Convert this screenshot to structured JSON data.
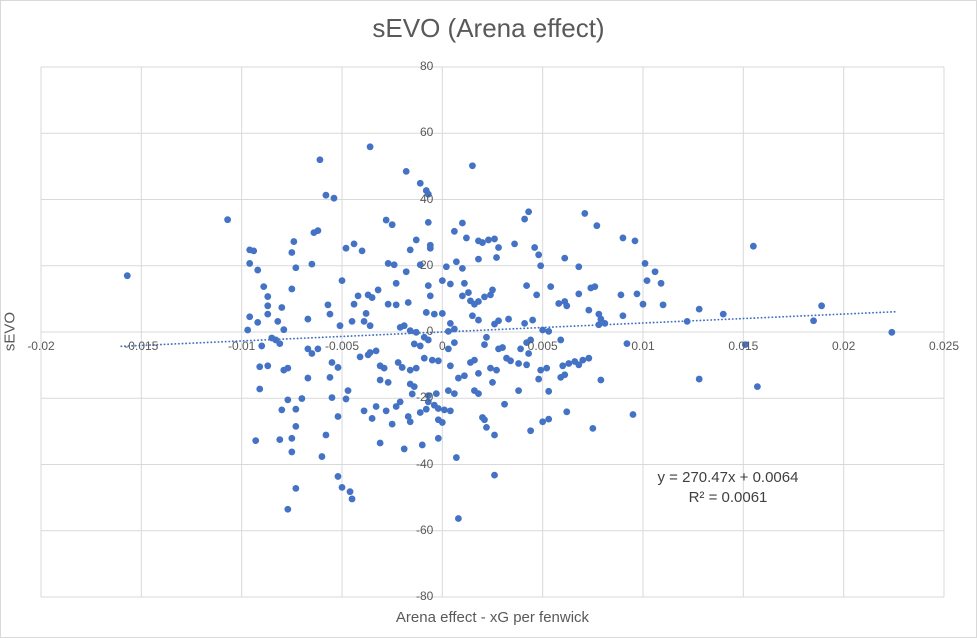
{
  "title": "sEVO (Arena effect)",
  "colors": {
    "point": "#4472C4",
    "trendline": "#4472C4",
    "gridline": "#D9D9D9",
    "title_text": "#595959",
    "tick_text": "#595959",
    "equation_text": "#404040"
  },
  "chart_data": {
    "type": "scatter",
    "title": "sEVO (Arena effect)",
    "xlabel": "Arena effect - xG per fenwick",
    "ylabel": "sEVO",
    "xlim": [
      -0.02,
      0.025
    ],
    "ylim": [
      -80,
      80
    ],
    "grid": true,
    "x_ticks": [
      -0.02,
      -0.015,
      -0.01,
      -0.005,
      0,
      0.005,
      0.01,
      0.015,
      0.02,
      0.025
    ],
    "x_tick_labels": [
      "-0.02",
      "-0.015",
      "-0.01",
      "-0.005",
      "0",
      "0.005",
      "0.01",
      "0.015",
      "0.02",
      "0.025"
    ],
    "y_ticks": [
      80,
      60,
      40,
      20,
      0,
      -20,
      -40,
      -60,
      -80
    ],
    "y_tick_labels": [
      "80",
      "60",
      "40",
      "20",
      "0",
      "-20",
      "-40",
      "-60",
      "-80"
    ],
    "point_color": "#4472C4",
    "trendline": {
      "slope": 270.47,
      "intercept": 0.0064,
      "x_start": -0.016,
      "x_end": 0.0226,
      "style": "dotted",
      "equation": "y = 270.47x + 0.0064",
      "r_squared": "R² = 0.0061"
    },
    "points": [
      [
        -0.0157,
        17.0
      ],
      [
        -0.0107,
        33.9
      ],
      [
        -0.0096,
        24.8
      ],
      [
        -0.0094,
        24.5
      ],
      [
        -0.0096,
        20.7
      ],
      [
        -0.0092,
        18.7
      ],
      [
        -0.0074,
        27.3
      ],
      [
        -0.0075,
        24.0
      ],
      [
        -0.0073,
        19.4
      ],
      [
        -0.0061,
        52.0
      ],
      [
        -0.0036,
        55.9
      ],
      [
        -0.0018,
        48.5
      ],
      [
        -0.0011,
        44.9
      ],
      [
        -0.0008,
        42.7
      ],
      [
        -0.0007,
        41.6
      ],
      [
        0.0015,
        50.2
      ],
      [
        -0.0058,
        41.3
      ],
      [
        -0.0054,
        40.4
      ],
      [
        -0.0064,
        30.0
      ],
      [
        -0.0062,
        30.6
      ],
      [
        -0.0028,
        33.8
      ],
      [
        -0.0025,
        32.4
      ],
      [
        -0.0007,
        33.1
      ],
      [
        0.0006,
        30.4
      ],
      [
        0.001,
        32.9
      ],
      [
        0.0012,
        28.4
      ],
      [
        -0.0013,
        27.8
      ],
      [
        -0.0006,
        26.2
      ],
      [
        -0.0006,
        25.3
      ],
      [
        -0.0048,
        25.3
      ],
      [
        -0.0044,
        26.6
      ],
      [
        -0.004,
        24.5
      ],
      [
        -0.0016,
        24.8
      ],
      [
        0.0018,
        27.5
      ],
      [
        0.002,
        27.0
      ],
      [
        0.0023,
        27.8
      ],
      [
        0.0026,
        28.1
      ],
      [
        0.0028,
        25.5
      ],
      [
        0.0018,
        22.0
      ],
      [
        0.0027,
        22.5
      ],
      [
        -0.0065,
        20.5
      ],
      [
        -0.0027,
        20.7
      ],
      [
        -0.0024,
        20.3
      ],
      [
        -0.0018,
        18.2
      ],
      [
        -0.0011,
        20.3
      ],
      [
        0.0002,
        19.7
      ],
      [
        0.0007,
        21.2
      ],
      [
        0.001,
        19.2
      ],
      [
        0.0043,
        36.3
      ],
      [
        0.0041,
        34.1
      ],
      [
        0.0071,
        35.8
      ],
      [
        0.0077,
        32.1
      ],
      [
        0.009,
        28.4
      ],
      [
        0.0096,
        27.5
      ],
      [
        0.0036,
        26.6
      ],
      [
        0.0046,
        25.5
      ],
      [
        0.0048,
        23.3
      ],
      [
        0.0049,
        20.0
      ],
      [
        0.0061,
        22.3
      ],
      [
        0.0068,
        19.7
      ],
      [
        0.0101,
        20.7
      ],
      [
        0.0106,
        18.2
      ],
      [
        0.0155,
        25.9
      ],
      [
        -0.0089,
        13.7
      ],
      [
        -0.0075,
        13.0
      ],
      [
        -0.0087,
        10.7
      ],
      [
        -0.0087,
        7.9
      ],
      [
        -0.008,
        7.4
      ],
      [
        -0.0087,
        5.4
      ],
      [
        -0.0096,
        4.6
      ],
      [
        -0.0092,
        2.9
      ],
      [
        -0.0082,
        3.2
      ],
      [
        -0.0067,
        3.9
      ],
      [
        -0.0097,
        0.6
      ],
      [
        -0.0079,
        0.7
      ],
      [
        -0.0085,
        -1.8
      ],
      [
        -0.0083,
        -2.4
      ],
      [
        -0.0081,
        -3.5
      ],
      [
        -0.009,
        -4.2
      ],
      [
        -0.0067,
        -5.1
      ],
      [
        -0.0091,
        -10.5
      ],
      [
        -0.0087,
        -10.2
      ],
      [
        -0.0079,
        -11.5
      ],
      [
        -0.0077,
        -10.9
      ],
      [
        -0.0091,
        -17.2
      ],
      [
        -0.0067,
        -13.9
      ],
      [
        -0.0057,
        8.2
      ],
      [
        -0.0056,
        5.4
      ],
      [
        -0.005,
        15.5
      ],
      [
        -0.0051,
        1.9
      ],
      [
        -0.0045,
        3.2
      ],
      [
        -0.0044,
        8.4
      ],
      [
        -0.0042,
        10.9
      ],
      [
        -0.0038,
        5.6
      ],
      [
        -0.0039,
        3.2
      ],
      [
        -0.0037,
        11.2
      ],
      [
        -0.0035,
        10.4
      ],
      [
        -0.0036,
        1.9
      ],
      [
        -0.0032,
        12.7
      ],
      [
        -0.0027,
        8.4
      ],
      [
        -0.0023,
        8.2
      ],
      [
        -0.0023,
        14.7
      ],
      [
        -0.0021,
        1.4
      ],
      [
        -0.0019,
        1.9
      ],
      [
        -0.0017,
        8.9
      ],
      [
        -0.0016,
        0.4
      ],
      [
        -0.0013,
        -0.1
      ],
      [
        -0.0007,
        14.0
      ],
      [
        -0.0006,
        10.9
      ],
      [
        -0.0008,
        5.9
      ],
      [
        -0.0004,
        5.4
      ],
      [
        0.0,
        5.6
      ],
      [
        -0.0009,
        -1.6
      ],
      [
        -0.0007,
        -2.4
      ],
      [
        -0.0014,
        -3.6
      ],
      [
        -0.0011,
        -4.2
      ],
      [
        0.0,
        15.5
      ],
      [
        0.0004,
        14.5
      ],
      [
        0.0011,
        14.7
      ],
      [
        0.0003,
        0.2
      ],
      [
        0.0006,
        0.9
      ],
      [
        0.0004,
        2.6
      ],
      [
        0.0006,
        -3.2
      ],
      [
        0.0003,
        -5.1
      ],
      [
        0.001,
        10.9
      ],
      [
        0.0013,
        11.9
      ],
      [
        0.0014,
        9.4
      ],
      [
        0.0016,
        8.4
      ],
      [
        0.0018,
        9.2
      ],
      [
        0.0015,
        4.9
      ],
      [
        0.0018,
        3.6
      ],
      [
        0.0021,
        10.6
      ],
      [
        0.0024,
        11.2
      ],
      [
        0.0025,
        12.7
      ],
      [
        0.0026,
        2.4
      ],
      [
        0.0028,
        3.4
      ],
      [
        0.0022,
        -1.6
      ],
      [
        0.0021,
        -3.8
      ],
      [
        0.0028,
        -5.1
      ],
      [
        0.003,
        -4.7
      ],
      [
        0.0033,
        3.9
      ],
      [
        -0.0062,
        -5.1
      ],
      [
        -0.0065,
        -6.5
      ],
      [
        -0.0055,
        -9.2
      ],
      [
        -0.0052,
        -10.7
      ],
      [
        -0.0056,
        -13.7
      ],
      [
        -0.0047,
        -17.7
      ],
      [
        -0.0041,
        -7.5
      ],
      [
        -0.0037,
        -6.9
      ],
      [
        -0.0036,
        -6.2
      ],
      [
        -0.0033,
        -5.7
      ],
      [
        -0.0031,
        -10.2
      ],
      [
        -0.0029,
        -10.9
      ],
      [
        -0.0031,
        -14.5
      ],
      [
        -0.0027,
        -15.2
      ],
      [
        -0.0022,
        -9.2
      ],
      [
        -0.002,
        -10.7
      ],
      [
        -0.0016,
        -11.5
      ],
      [
        -0.0013,
        -10.9
      ],
      [
        -0.0016,
        -15.7
      ],
      [
        -0.0014,
        -16.5
      ],
      [
        -0.0009,
        -7.9
      ],
      [
        -0.0005,
        -8.5
      ],
      [
        -0.0002,
        -8.7
      ],
      [
        0.0004,
        -10.2
      ],
      [
        0.0008,
        -13.9
      ],
      [
        0.0011,
        -13.2
      ],
      [
        0.0003,
        -17.7
      ],
      [
        0.0006,
        -18.6
      ],
      [
        0.0014,
        -9.2
      ],
      [
        0.0016,
        -8.5
      ],
      [
        0.0018,
        -12.5
      ],
      [
        0.0024,
        -10.9
      ],
      [
        0.0027,
        -11.5
      ],
      [
        0.0025,
        -15.2
      ],
      [
        0.0032,
        -7.9
      ],
      [
        -0.0015,
        -18.7
      ],
      [
        -0.0007,
        -19.2
      ],
      [
        -0.0003,
        -18.6
      ],
      [
        0.0016,
        -17.7
      ],
      [
        0.0018,
        -18.6
      ],
      [
        0.0042,
        14.0
      ],
      [
        0.0047,
        11.2
      ],
      [
        0.0054,
        13.7
      ],
      [
        0.0068,
        11.5
      ],
      [
        0.0074,
        13.3
      ],
      [
        0.0076,
        13.7
      ],
      [
        0.0058,
        8.6
      ],
      [
        0.0061,
        9.2
      ],
      [
        0.0062,
        7.9
      ],
      [
        0.0073,
        6.6
      ],
      [
        0.0078,
        5.4
      ],
      [
        0.0079,
        3.9
      ],
      [
        0.0081,
        2.6
      ],
      [
        0.0078,
        2.2
      ],
      [
        0.0089,
        11.2
      ],
      [
        0.0097,
        11.5
      ],
      [
        0.009,
        4.9
      ],
      [
        0.01,
        8.4
      ],
      [
        0.0102,
        15.5
      ],
      [
        0.0109,
        14.7
      ],
      [
        0.011,
        8.2
      ],
      [
        0.0122,
        3.2
      ],
      [
        0.0128,
        6.9
      ],
      [
        0.0041,
        2.6
      ],
      [
        0.0045,
        3.6
      ],
      [
        0.005,
        0.6
      ],
      [
        0.0053,
        0.2
      ],
      [
        0.0042,
        -3.2
      ],
      [
        0.0044,
        -2.4
      ],
      [
        0.0039,
        -5.1
      ],
      [
        0.0043,
        -6.5
      ],
      [
        0.0059,
        -2.4
      ],
      [
        0.0092,
        -3.5
      ],
      [
        0.0034,
        -8.7
      ],
      [
        0.0038,
        -9.5
      ],
      [
        0.0042,
        -9.9
      ],
      [
        0.0049,
        -11.5
      ],
      [
        0.0052,
        -10.9
      ],
      [
        0.006,
        -10.2
      ],
      [
        0.0063,
        -9.5
      ],
      [
        0.0066,
        -8.9
      ],
      [
        0.0068,
        -9.9
      ],
      [
        0.007,
        -8.5
      ],
      [
        0.0073,
        -7.9
      ],
      [
        0.0048,
        -14.2
      ],
      [
        0.0059,
        -13.7
      ],
      [
        0.0061,
        -12.9
      ],
      [
        0.0079,
        -14.5
      ],
      [
        0.0128,
        -14.2
      ],
      [
        0.0038,
        -17.7
      ],
      [
        0.0053,
        -17.9
      ],
      [
        0.014,
        5.4
      ],
      [
        0.0189,
        7.9
      ],
      [
        0.0185,
        3.4
      ],
      [
        0.0224,
        -0.1
      ],
      [
        0.0151,
        -3.8
      ],
      [
        0.0157,
        -16.5
      ],
      [
        -0.0077,
        -20.5
      ],
      [
        -0.007,
        -20.1
      ],
      [
        -0.0055,
        -19.8
      ],
      [
        -0.0048,
        -20.2
      ],
      [
        -0.008,
        -23.5
      ],
      [
        -0.0073,
        -23.3
      ],
      [
        -0.0052,
        -25.5
      ],
      [
        -0.0073,
        -28.5
      ],
      [
        -0.0058,
        -31.1
      ],
      [
        -0.0093,
        -32.8
      ],
      [
        -0.0081,
        -32.5
      ],
      [
        -0.0075,
        -32.1
      ],
      [
        -0.0075,
        -36.2
      ],
      [
        -0.006,
        -37.6
      ],
      [
        -0.0052,
        -43.6
      ],
      [
        -0.005,
        -46.9
      ],
      [
        -0.0073,
        -47.2
      ],
      [
        -0.0077,
        -53.5
      ],
      [
        -0.0046,
        -48.2
      ],
      [
        -0.0039,
        -23.8
      ],
      [
        -0.0033,
        -22.5
      ],
      [
        -0.0028,
        -23.8
      ],
      [
        -0.0023,
        -22.5
      ],
      [
        -0.0021,
        -21.1
      ],
      [
        -0.0035,
        -26.1
      ],
      [
        -0.0025,
        -27.8
      ],
      [
        -0.0017,
        -25.5
      ],
      [
        -0.0016,
        -27.1
      ],
      [
        -0.0011,
        -24.3
      ],
      [
        -0.0008,
        -23.3
      ],
      [
        -0.0007,
        -21.1
      ],
      [
        -0.0004,
        -22.1
      ],
      [
        -0.0002,
        -23.1
      ],
      [
        0.0001,
        -23.5
      ],
      [
        -0.0002,
        -26.5
      ],
      [
        0.0,
        -27.3
      ],
      [
        0.0004,
        -23.8
      ],
      [
        -0.0002,
        -32.1
      ],
      [
        -0.0031,
        -33.5
      ],
      [
        -0.0019,
        -35.3
      ],
      [
        -0.001,
        -34.1
      ],
      [
        0.0007,
        -37.9
      ],
      [
        0.002,
        -25.8
      ],
      [
        0.0021,
        -26.5
      ],
      [
        0.0022,
        -28.8
      ],
      [
        0.0026,
        -31.1
      ],
      [
        0.0031,
        -21.8
      ],
      [
        0.0044,
        -29.8
      ],
      [
        0.005,
        -27.1
      ],
      [
        0.0053,
        -26.3
      ],
      [
        0.0026,
        -43.2
      ],
      [
        -0.0045,
        -50.4
      ],
      [
        0.0008,
        -56.3
      ],
      [
        0.0062,
        -24.1
      ],
      [
        0.0075,
        -29.1
      ],
      [
        0.0095,
        -24.9
      ]
    ]
  }
}
